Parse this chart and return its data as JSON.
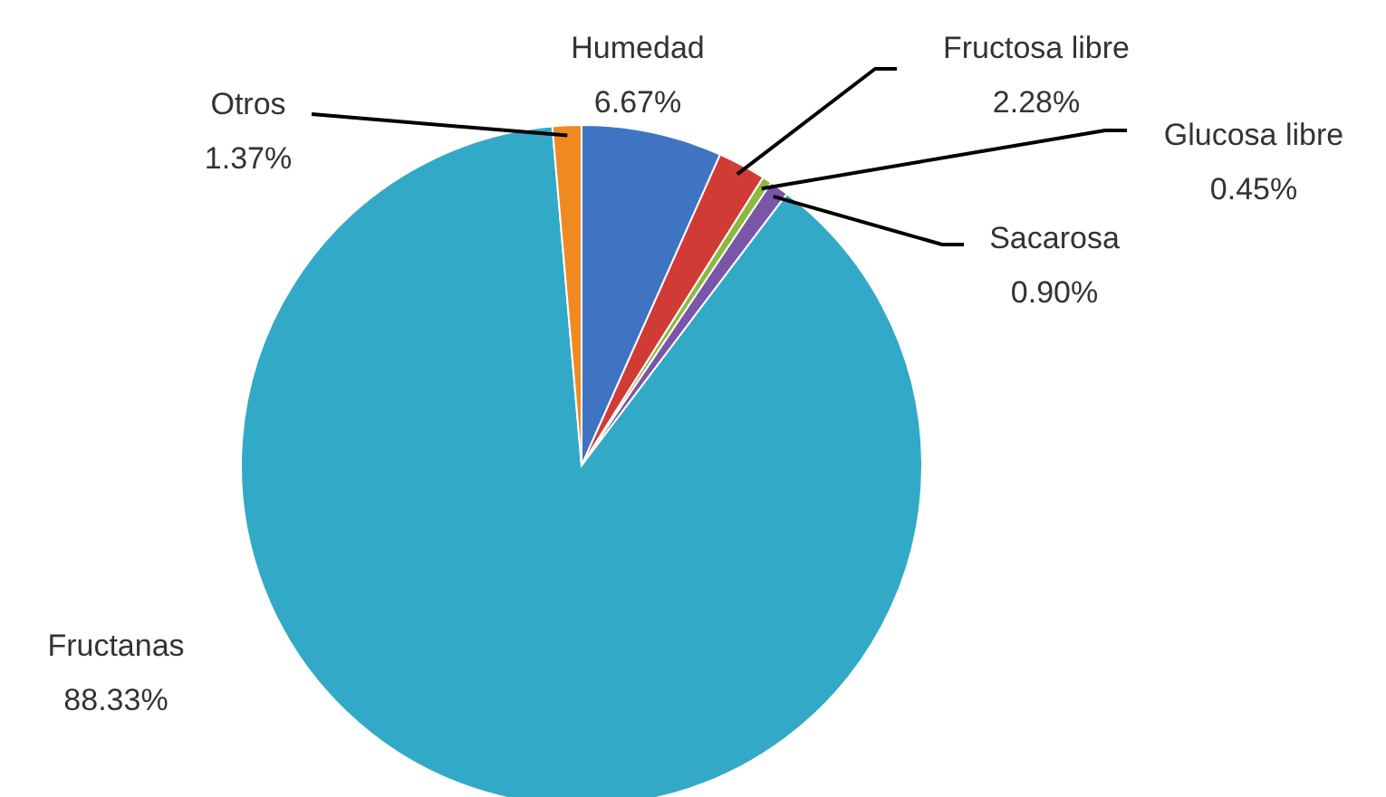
{
  "chart_data": {
    "type": "pie",
    "categories": [
      "Humedad",
      "Fructosa libre",
      "Glucosa libre",
      "Sacarosa",
      "Fructanas",
      "Otros"
    ],
    "values": [
      6.67,
      2.28,
      0.45,
      0.9,
      88.33,
      1.37
    ],
    "value_labels": [
      "6.67%",
      "2.28%",
      "0.45%",
      "0.90%",
      "88.33%",
      "1.37%"
    ],
    "colors": [
      "#3f74c2",
      "#d13b36",
      "#8cb83f",
      "#7a55a8",
      "#33a9c8",
      "#ef8a22"
    ],
    "legend": false
  }
}
